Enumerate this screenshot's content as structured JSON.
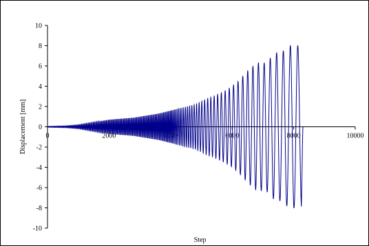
{
  "chart_data": {
    "type": "line",
    "title": "",
    "xlabel": "Step",
    "ylabel": "Displacement [mm]",
    "xlim": [
      0,
      10000
    ],
    "ylim": [
      -10,
      10
    ],
    "x_ticks": [
      0,
      2000,
      4000,
      6000,
      8000,
      10000
    ],
    "y_ticks": [
      -10,
      -8,
      -6,
      -4,
      -2,
      0,
      2,
      4,
      6,
      8,
      10
    ],
    "grid": false,
    "legend": "none",
    "series": [
      {
        "color": "#00008b",
        "description_of_shape": "oscillating cyclic displacement with stepwise increasing amplitude",
        "x": [
          0,
          600,
          1000,
          1400,
          1800,
          2000,
          2400,
          2800,
          3200,
          3600,
          4000,
          4400,
          4800,
          5000,
          5200,
          5400,
          5600,
          5800,
          6000,
          6200,
          6500,
          6800,
          7100,
          7400,
          7600,
          7850,
          8100,
          8250,
          8300
        ],
        "amplitude": [
          0.05,
          0.1,
          0.2,
          0.4,
          0.6,
          0.7,
          0.8,
          0.9,
          1.1,
          1.3,
          1.6,
          1.9,
          2.2,
          2.5,
          2.8,
          3.0,
          3.3,
          3.6,
          4.0,
          4.5,
          5.5,
          6.3,
          6.3,
          7.3,
          7.3,
          8.0,
          8.0,
          8.0,
          0.0
        ]
      }
    ]
  }
}
